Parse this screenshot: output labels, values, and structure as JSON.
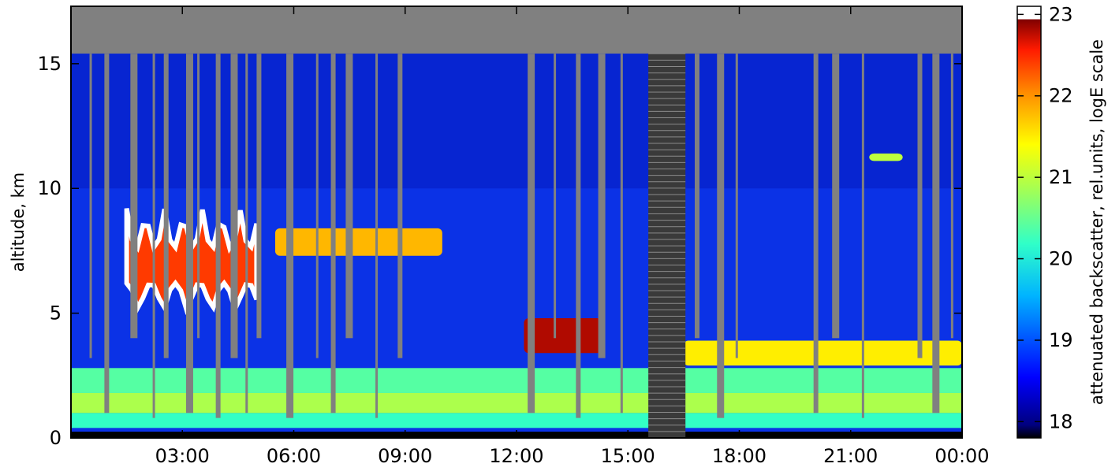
{
  "chart_data": {
    "type": "heatmap",
    "title": "",
    "xlabel": "",
    "ylabel": "altitude, km",
    "xlim": [
      "00:00",
      "24:00"
    ],
    "ylim": [
      0,
      17.3
    ],
    "x_tick_labels": [
      "03:00",
      "06:00",
      "09:00",
      "12:00",
      "15:00",
      "18:00",
      "21:00",
      "00:00"
    ],
    "x_tick_hours": [
      3,
      6,
      9,
      12,
      15,
      18,
      21,
      24
    ],
    "y_ticks": [
      0,
      5,
      10,
      15
    ],
    "y_tick_labels": [
      "0",
      "5",
      "10",
      "15"
    ],
    "grid": false,
    "colorbar": {
      "label": "attenuated backscatter, rel.units, logE scale",
      "range": [
        17.8,
        23.1
      ],
      "ticks": [
        18,
        19,
        20,
        21,
        22,
        23
      ],
      "tick_labels": [
        "18",
        "19",
        "20",
        "21",
        "22",
        "23"
      ],
      "colormap": "jet",
      "over_color": "#ffffff",
      "under_color": "#000000"
    },
    "masked_color": "#808080",
    "lidar_top_km": 15.4,
    "layers": [
      {
        "name": "boundary-layer",
        "from_h": 0,
        "to_h": 24,
        "base_km": 0.4,
        "top_km": 2.8,
        "value": 20.6
      },
      {
        "name": "mid-level-cloud",
        "from_h": 1.5,
        "to_h": 5.0,
        "base_km": 5.0,
        "top_km": 9.2,
        "value": 23.1
      },
      {
        "name": "cloud-layer-7.5km",
        "from_h": 5.5,
        "to_h": 10.0,
        "base_km": 7.3,
        "top_km": 8.4,
        "value": 21.8
      },
      {
        "name": "cloud-layer-4.2km",
        "from_h": 12.2,
        "to_h": 14.3,
        "base_km": 3.4,
        "top_km": 4.8,
        "value": 22.8
      },
      {
        "name": "elevated-layer-3.5km",
        "from_h": 16.5,
        "to_h": 24,
        "base_km": 2.9,
        "top_km": 3.9,
        "value": 21.5
      },
      {
        "name": "cirrus-11km",
        "from_h": 21.5,
        "to_h": 22.4,
        "base_km": 11.1,
        "top_km": 11.4,
        "value": 21.0
      }
    ],
    "no_data_intervals": [
      [
        15.55,
        16.55
      ]
    ]
  }
}
